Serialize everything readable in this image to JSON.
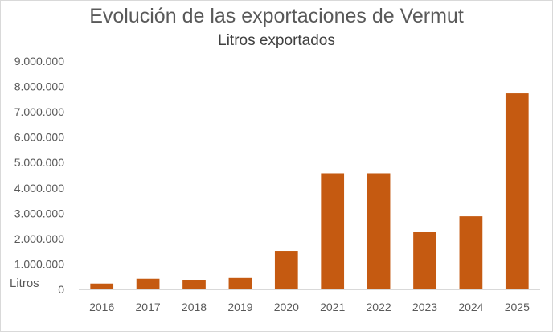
{
  "chart_data": {
    "type": "bar",
    "title": "Evolución de las exportaciones de Vermut",
    "subtitle": "Litros exportados",
    "ylabel": "Litros",
    "xlabel": "",
    "categories": [
      "2016",
      "2017",
      "2018",
      "2019",
      "2020",
      "2021",
      "2022",
      "2023",
      "2024",
      "2025"
    ],
    "values": [
      230000,
      420000,
      380000,
      450000,
      1520000,
      4580000,
      4580000,
      2250000,
      2880000,
      7730000
    ],
    "ylim": [
      0,
      9000000
    ],
    "yticks": [
      0,
      1000000,
      2000000,
      3000000,
      4000000,
      5000000,
      6000000,
      7000000,
      8000000,
      9000000
    ],
    "ytick_labels": [
      "0",
      "1.000.000",
      "2.000.000",
      "3.000.000",
      "4.000.000",
      "5.000.000",
      "6.000.000",
      "7.000.000",
      "8.000.000",
      "9.000.000"
    ],
    "grid": false,
    "legend": "none",
    "bar_color": "#c55a11"
  }
}
